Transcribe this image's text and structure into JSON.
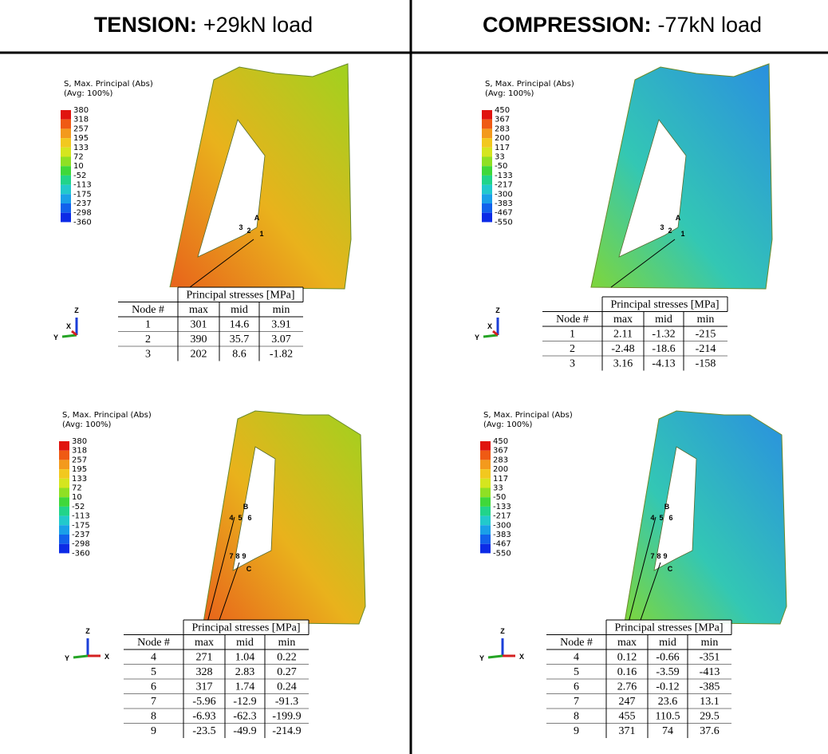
{
  "columns": [
    {
      "header": {
        "label": "TENSION:",
        "load": "+29kN load"
      },
      "panels": [
        {
          "legend": {
            "title": "S, Max. Principal (Abs)",
            "subtitle": "(Avg: 100%)",
            "values": [
              380,
              318,
              257,
              195,
              133,
              72,
              10,
              -52,
              -113,
              -175,
              -237,
              -298,
              -360
            ]
          },
          "triad": [
            "Z",
            "Y",
            "X"
          ],
          "point_labels": [
            "A",
            "3",
            "2",
            "1"
          ],
          "table": {
            "caption": "Principal stresses [MPa]",
            "columns": [
              "Node #",
              "max",
              "mid",
              "min"
            ],
            "rows": [
              [
                1,
                301,
                14.6,
                3.91
              ],
              [
                2,
                390,
                35.7,
                3.07
              ],
              [
                3,
                202,
                8.6,
                -1.82
              ]
            ]
          }
        },
        {
          "legend": {
            "title": "S, Max. Principal (Abs)",
            "subtitle": "(Avg: 100%)",
            "values": [
              380,
              318,
              257,
              195,
              133,
              72,
              10,
              -52,
              -113,
              -175,
              -237,
              -298,
              -360
            ]
          },
          "triad": [
            "Z",
            "Y",
            "X"
          ],
          "point_labels": [
            "B",
            "4",
            "5",
            "6",
            "C",
            "7",
            "8",
            "9"
          ],
          "table": {
            "caption": "Principal stresses [MPa]",
            "columns": [
              "Node #",
              "max",
              "mid",
              "min"
            ],
            "rows": [
              [
                4,
                271,
                1.04,
                0.22
              ],
              [
                5,
                328,
                2.83,
                0.27
              ],
              [
                6,
                317,
                1.74,
                0.24
              ],
              [
                7,
                -5.96,
                -12.9,
                -91.3
              ],
              [
                8,
                -6.93,
                -62.3,
                -199.9
              ],
              [
                9,
                -23.5,
                -49.9,
                -214.9
              ]
            ]
          }
        }
      ]
    },
    {
      "header": {
        "label": "COMPRESSION:",
        "load": "-77kN load"
      },
      "panels": [
        {
          "legend": {
            "title": "S, Max. Principal (Abs)",
            "subtitle": "(Avg: 100%)",
            "values": [
              450,
              367,
              283,
              200,
              117,
              33,
              -50,
              -133,
              -217,
              -300,
              -383,
              -467,
              -550
            ]
          },
          "triad": [
            "Z",
            "Y",
            "X"
          ],
          "point_labels": [
            "A",
            "3",
            "2",
            "1"
          ],
          "table": {
            "caption": "Principal stresses [MPa]",
            "columns": [
              "Node #",
              "max",
              "mid",
              "min"
            ],
            "rows": [
              [
                1,
                2.11,
                -1.32,
                -215
              ],
              [
                2,
                -2.48,
                -18.6,
                -214
              ],
              [
                3,
                3.16,
                -4.13,
                -158
              ]
            ]
          }
        },
        {
          "legend": {
            "title": "S, Max. Principal (Abs)",
            "subtitle": "(Avg: 100%)",
            "values": [
              450,
              367,
              283,
              200,
              117,
              33,
              -50,
              -133,
              -217,
              -300,
              -383,
              -467,
              -550
            ]
          },
          "triad": [
            "Z",
            "Y",
            "X"
          ],
          "point_labels": [
            "B",
            "4",
            "5",
            "6",
            "C",
            "7",
            "8",
            "9"
          ],
          "table": {
            "caption": "Principal stresses [MPa]",
            "columns": [
              "Node #",
              "max",
              "mid",
              "min"
            ],
            "rows": [
              [
                4,
                0.12,
                -0.66,
                -351
              ],
              [
                5,
                0.16,
                -3.59,
                -413
              ],
              [
                6,
                2.76,
                -0.12,
                -385
              ],
              [
                7,
                247,
                23.6,
                13.1
              ],
              [
                8,
                455,
                110.5,
                29.5
              ],
              [
                9,
                371,
                74,
                37.6
              ]
            ]
          }
        }
      ]
    }
  ]
}
